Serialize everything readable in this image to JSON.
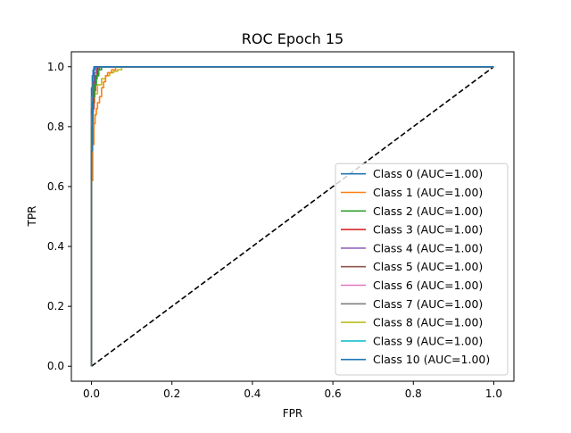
{
  "chart_data": {
    "type": "line",
    "title": "ROC Epoch 15",
    "xlabel": "FPR",
    "ylabel": "TPR",
    "xlim": [
      -0.05,
      1.05
    ],
    "ylim": [
      -0.05,
      1.05
    ],
    "xticks": [
      0.0,
      0.2,
      0.4,
      0.6,
      0.8,
      1.0
    ],
    "yticks": [
      0.0,
      0.2,
      0.4,
      0.6,
      0.8,
      1.0
    ],
    "xtick_labels": [
      "0.0",
      "0.2",
      "0.4",
      "0.6",
      "0.8",
      "1.0"
    ],
    "ytick_labels": [
      "0.0",
      "0.2",
      "0.4",
      "0.6",
      "0.8",
      "1.0"
    ],
    "grid": false,
    "legend_position": "lower-right",
    "reference_line": {
      "x": [
        0,
        1
      ],
      "y": [
        0,
        1
      ],
      "style": "dashed",
      "color": "#000000"
    },
    "series": [
      {
        "name": "Class 0 (AUC=1.00)",
        "color": "#1f77b4",
        "x": [
          0,
          0,
          0.002,
          0.004,
          0.006,
          0.008,
          1.0
        ],
        "y": [
          0,
          0.72,
          0.88,
          0.95,
          0.99,
          1.0,
          1.0
        ]
      },
      {
        "name": "Class 1 (AUC=1.00)",
        "color": "#ff7f0e",
        "x": [
          0,
          0,
          0.003,
          0.006,
          0.009,
          0.012,
          0.015,
          0.02,
          0.025,
          0.03,
          0.035,
          0.04,
          0.05,
          0.06,
          1.0
        ],
        "y": [
          0,
          0.62,
          0.74,
          0.81,
          0.84,
          0.86,
          0.88,
          0.9,
          0.93,
          0.95,
          0.97,
          0.98,
          0.99,
          1.0,
          1.0
        ]
      },
      {
        "name": "Class 2 (AUC=1.00)",
        "color": "#2ca02c",
        "x": [
          0,
          0,
          0.004,
          0.008,
          0.012,
          0.018,
          0.025,
          1.0
        ],
        "y": [
          0,
          0.8,
          0.9,
          0.94,
          0.97,
          0.99,
          1.0,
          1.0
        ]
      },
      {
        "name": "Class 3 (AUC=1.00)",
        "color": "#d62728",
        "x": [
          0,
          0,
          0.003,
          0.006,
          0.01,
          0.015,
          1.0
        ],
        "y": [
          0,
          0.74,
          0.86,
          0.92,
          0.97,
          1.0,
          1.0
        ]
      },
      {
        "name": "Class 4 (AUC=1.00)",
        "color": "#9467bd",
        "x": [
          0,
          0,
          0.002,
          0.005,
          0.008,
          0.012,
          1.0
        ],
        "y": [
          0,
          0.84,
          0.9,
          0.95,
          0.98,
          1.0,
          1.0
        ]
      },
      {
        "name": "Class 5 (AUC=1.00)",
        "color": "#8c564b",
        "x": [
          0,
          0,
          0.004,
          0.008,
          0.014,
          0.02,
          1.0
        ],
        "y": [
          0,
          0.86,
          0.92,
          0.96,
          0.99,
          1.0,
          1.0
        ]
      },
      {
        "name": "Class 6 (AUC=1.00)",
        "color": "#e377c2",
        "x": [
          0,
          0,
          0.002,
          0.005,
          0.009,
          0.013,
          1.0
        ],
        "y": [
          0,
          0.73,
          0.85,
          0.93,
          0.98,
          1.0,
          1.0
        ]
      },
      {
        "name": "Class 7 (AUC=1.00)",
        "color": "#7f7f7f",
        "x": [
          0,
          0,
          0.003,
          0.007,
          0.012,
          0.018,
          1.0
        ],
        "y": [
          0,
          0.9,
          0.95,
          0.98,
          0.995,
          1.0,
          1.0
        ]
      },
      {
        "name": "Class 8 (AUC=1.00)",
        "color": "#bcbd22",
        "x": [
          0,
          0,
          0.004,
          0.008,
          0.015,
          0.025,
          0.035,
          0.045,
          0.055,
          0.065,
          0.075,
          1.0
        ],
        "y": [
          0,
          0.8,
          0.88,
          0.91,
          0.94,
          0.96,
          0.97,
          0.98,
          0.985,
          0.99,
          1.0,
          1.0
        ]
      },
      {
        "name": "Class 9 (AUC=1.00)",
        "color": "#17becf",
        "x": [
          0,
          0,
          0.003,
          0.007,
          0.012,
          0.018,
          0.025,
          1.0
        ],
        "y": [
          0,
          0.83,
          0.9,
          0.94,
          0.97,
          0.99,
          1.0,
          1.0
        ]
      },
      {
        "name": "Class 10 (AUC=1.00)",
        "color": "#1f77b4",
        "x": [
          0,
          0,
          0.002,
          0.004,
          0.006,
          1.0
        ],
        "y": [
          0,
          0.93,
          0.97,
          0.99,
          1.0,
          1.0
        ]
      }
    ]
  }
}
